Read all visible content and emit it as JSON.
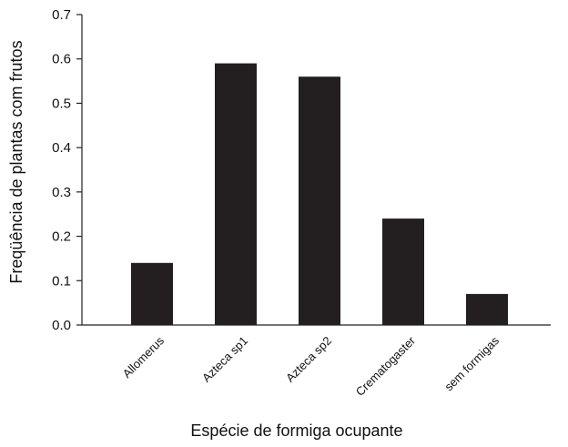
{
  "chart_data": {
    "type": "bar",
    "title": "",
    "xlabel": "Espécie de formiga ocupante",
    "ylabel": "Freqüência de plantas com frutos",
    "categories": [
      "Allomerus",
      "Azteca sp1",
      "Azteca sp2",
      "Crematogaster",
      "sem formigas"
    ],
    "values": [
      0.14,
      0.59,
      0.56,
      0.24,
      0.07
    ],
    "ylim": [
      0,
      0.7
    ],
    "yticks": [
      "0.0",
      "0.1",
      "0.2",
      "0.3",
      "0.4",
      "0.5",
      "0.6",
      "0.7"
    ],
    "grid": false,
    "legend": "none",
    "bar_color": "#231f20"
  }
}
